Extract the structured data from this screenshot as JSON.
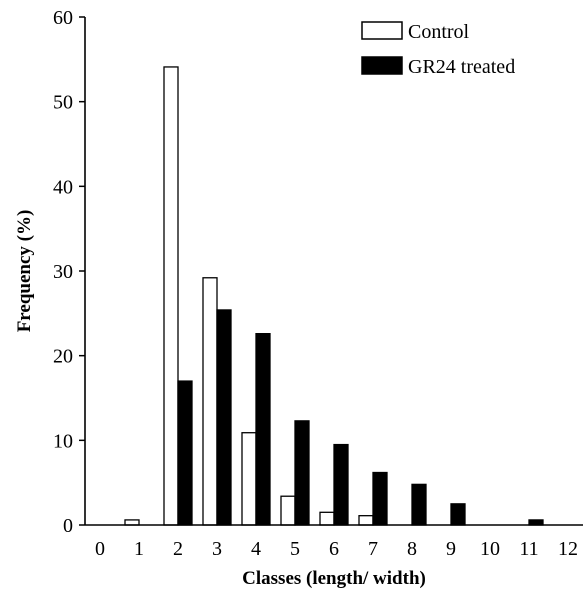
{
  "chart_data": {
    "type": "bar",
    "categories": [
      "0",
      "1",
      "2",
      "3",
      "4",
      "5",
      "6",
      "7",
      "8",
      "9",
      "10",
      "11",
      "12"
    ],
    "series": [
      {
        "name": "Control",
        "values": [
          0,
          0.6,
          54.1,
          29.2,
          10.9,
          3.4,
          1.5,
          1.1,
          0,
          0,
          0,
          0,
          0
        ],
        "fill": "#ffffff",
        "stroke": "#000000"
      },
      {
        "name": "GR24 treated",
        "values": [
          0,
          0,
          17.0,
          25.4,
          22.6,
          12.3,
          9.5,
          6.2,
          4.8,
          2.5,
          0,
          0.6,
          0
        ],
        "fill": "#000000",
        "stroke": "#000000"
      }
    ],
    "xlabel": "Classes (length/ width)",
    "ylabel": "Frequency (%)",
    "ylim": [
      0,
      60
    ],
    "yticks": [
      0,
      10,
      20,
      30,
      40,
      50,
      60
    ],
    "grid": false,
    "legend_position": "top-right"
  }
}
